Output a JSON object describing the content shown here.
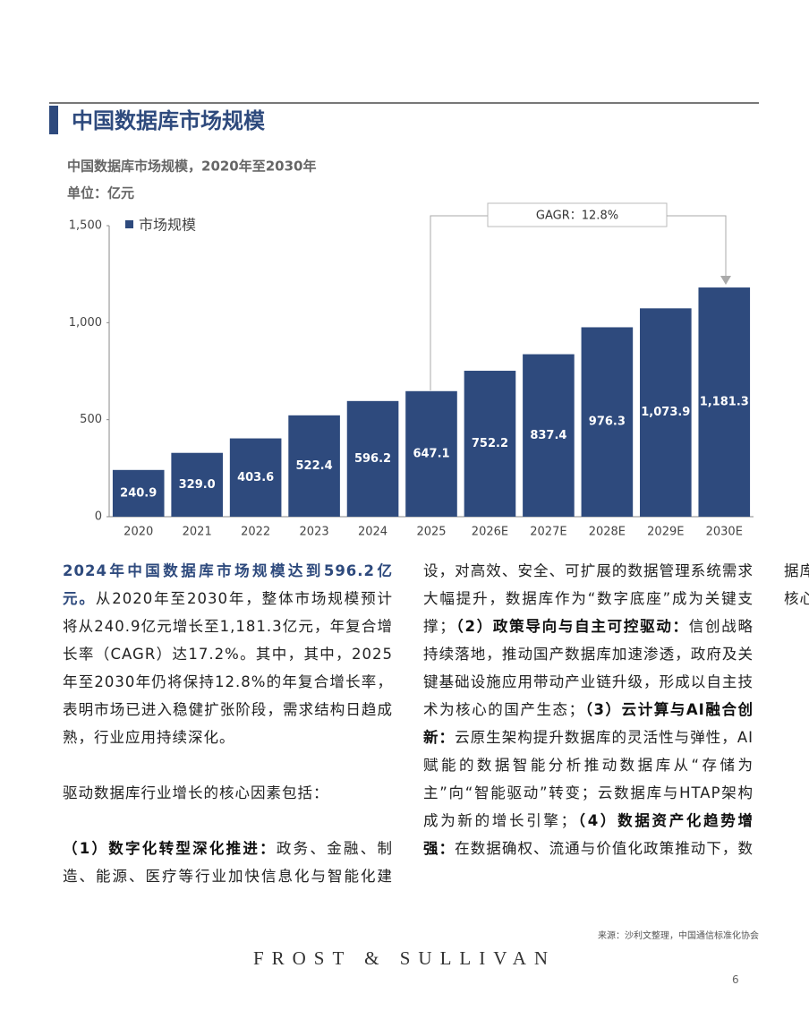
{
  "header": {
    "title": "中国数据库市场规模"
  },
  "chart_data": {
    "type": "bar",
    "title": "中国数据库市场规模，2020年至2030年",
    "subtitle": "单位：亿元",
    "categories": [
      "2020",
      "2021",
      "2022",
      "2023",
      "2024",
      "2025",
      "2026E",
      "2027E",
      "2028E",
      "2029E",
      "2030E"
    ],
    "series": [
      {
        "name": "市场规模",
        "color": "#2e4a7d",
        "values": [
          240.9,
          329.0,
          403.6,
          522.4,
          596.2,
          647.1,
          752.2,
          837.4,
          976.3,
          1073.9,
          1181.3
        ],
        "value_labels": [
          "240.9",
          "329.0",
          "403.6",
          "522.4",
          "596.2",
          "647.1",
          "752.2",
          "837.4",
          "976.3",
          "1,073.9",
          "1,181.3"
        ]
      }
    ],
    "ylim": [
      0,
      1500
    ],
    "yticks": [
      0,
      500,
      {
        "value": 1000,
        "label": "1,000"
      },
      {
        "value": 1500,
        "label": "1,500"
      }
    ],
    "legend": "top-left",
    "annotation": "GAGR：12.8%"
  },
  "body": [
    {
      "runs": [
        {
          "text": "2024年中国数据库市场规模达到596.2亿元。",
          "emphasis": true
        },
        {
          "text": "从2020年至2030年，整体市场规模预计将从240.9亿元增长至1,181.3亿元，年复合增长率（CAGR）达17.2%。其中，其中，2025年至2030年仍将保持12.8%的年复合增长率，表明市场已进入稳健扩张阶段，需求结构日趋成熟，行业应用持续深化。",
          "emphasis": false
        }
      ]
    },
    {
      "runs": [
        {
          "text": "驱动数据库行业增长的核心因素包括：",
          "emphasis": false
        }
      ]
    },
    {
      "runs": [
        {
          "text": "（1）数字化转型深化推进：",
          "emphasis": true
        },
        {
          "text": "政务、金融、制造、能源、医疗等行业加快信息化与智能化建设，对高效、安全、可扩展的数据管理系统需求大幅提升，数据库作为“数字底座”成为关键支撑；",
          "emphasis": false
        },
        {
          "text": "（2）政策导向与自主可控驱动：",
          "emphasis": true
        },
        {
          "text": "信创战略持续落地，推动国产数据库加速渗透，政府及关键基础设施应用带动产业链升级，形成以自主技术为核心的国产生态；",
          "emphasis": false
        },
        {
          "text": "（3）云计算与AI融合创新：",
          "emphasis": true
        },
        {
          "text": "云原生架构提升数据库的灵活性与弹性，AI赋能的数据智能分析推动数据库从“存储为主”向“智能驱动”转变；云数据库与HTAP架构成为新的增长引擎；",
          "emphasis": false
        },
        {
          "text": "（4）数据资产化趋势增强：",
          "emphasis": true
        },
        {
          "text": "在数据确权、流通与价值化政策推动下，数据库从信息存储工具转变为数据要素价值实现的核心基础设施。",
          "emphasis": false
        }
      ]
    }
  ],
  "footer": {
    "source": "来源：沙利文整理，中国通信标准化协会",
    "logo": "FROST & SULLIVAN",
    "page": "6"
  }
}
